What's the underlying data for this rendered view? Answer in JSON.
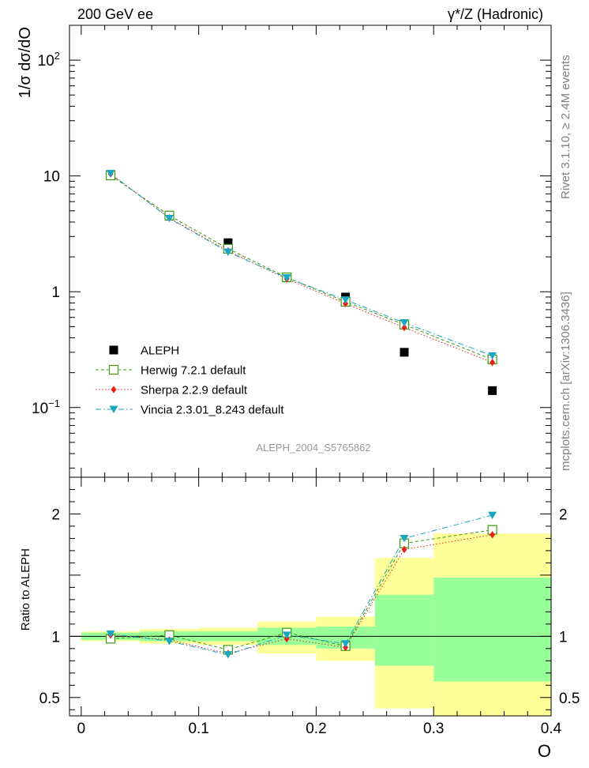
{
  "header": {
    "left": "200 GeV ee",
    "right": "γ*/Z (Hadronic)"
  },
  "side_labels": {
    "rivet": "Rivet 3.1.10, ≥ 2.4M events",
    "mcplots": "mcplots.cern.ch [arXiv:1306.3436]"
  },
  "chart_data": [
    {
      "type": "scatter",
      "panel": "main",
      "ylabel": "1/σ  dσ/dO",
      "yscale": "log",
      "xlim": [
        -0.01,
        0.4
      ],
      "ylim": [
        0.025,
        200
      ],
      "yticks": [
        {
          "value": 0.1,
          "label": "10",
          "sup": "−1"
        },
        {
          "value": 1,
          "label": "1",
          "sup": ""
        },
        {
          "value": 10,
          "label": "10",
          "sup": ""
        },
        {
          "value": 100,
          "label": "10",
          "sup": "2"
        }
      ],
      "watermark": "ALEPH_2004_S5765862",
      "x": [
        0.025,
        0.075,
        0.125,
        0.175,
        0.225,
        0.275,
        0.35
      ],
      "series": [
        {
          "name": "ALEPH",
          "color": "#000000",
          "marker": "square-filled",
          "line": "none",
          "values": [
            10.3,
            4.5,
            2.65,
            1.32,
            0.9,
            0.3,
            0.14
          ]
        },
        {
          "name": "Herwig 7.2.1 default",
          "color": "#3a9a10",
          "marker": "square-open",
          "line": "dashed",
          "values": [
            10.1,
            4.55,
            2.35,
            1.33,
            0.82,
            0.52,
            0.26
          ]
        },
        {
          "name": "Sherpa 2.2.9 default",
          "color": "#e8221a",
          "marker": "diamond-filled",
          "line": "dotted",
          "values": [
            10.4,
            4.35,
            2.25,
            1.29,
            0.79,
            0.49,
            0.245
          ]
        },
        {
          "name": "Vincia 2.3.01_8.243 default",
          "color": "#19a7c2",
          "marker": "triangle-down-filled",
          "line": "dashdot",
          "values": [
            10.5,
            4.3,
            2.2,
            1.32,
            0.85,
            0.54,
            0.28
          ]
        }
      ]
    },
    {
      "type": "scatter",
      "panel": "ratio",
      "ylabel": "Ratio to ALEPH",
      "xlabel": "O",
      "xlim": [
        -0.01,
        0.4
      ],
      "ylim": [
        0.35,
        2.3
      ],
      "xticks": [
        {
          "value": 0,
          "label": "0"
        },
        {
          "value": 0.1,
          "label": "0.1"
        },
        {
          "value": 0.2,
          "label": "0.2"
        },
        {
          "value": 0.3,
          "label": "0.3"
        },
        {
          "value": 0.4,
          "label": "0.4"
        }
      ],
      "yticks": [
        {
          "value": 0.5,
          "label": "0.5"
        },
        {
          "value": 1,
          "label": "1"
        },
        {
          "value": 2,
          "label": "2"
        }
      ],
      "bands": {
        "bin_edges": [
          0,
          0.05,
          0.1,
          0.15,
          0.2,
          0.25,
          0.3,
          0.4
        ],
        "yellow": [
          [
            0.96,
            1.04
          ],
          [
            0.94,
            1.06
          ],
          [
            0.93,
            1.07
          ],
          [
            0.86,
            1.12
          ],
          [
            0.8,
            1.16
          ],
          [
            0.41,
            1.64
          ],
          [
            0.32,
            1.84
          ]
        ],
        "green": [
          [
            0.97,
            1.03
          ],
          [
            0.96,
            1.04
          ],
          [
            0.96,
            1.04
          ],
          [
            0.93,
            1.07
          ],
          [
            0.9,
            1.08
          ],
          [
            0.76,
            1.34
          ],
          [
            0.63,
            1.48
          ]
        ]
      },
      "x": [
        0.025,
        0.075,
        0.125,
        0.175,
        0.225,
        0.275,
        0.35
      ],
      "series": [
        {
          "name": "Herwig 7.2.1 default",
          "color": "#3a9a10",
          "marker": "square-open",
          "line": "dashed",
          "values": [
            0.98,
            1.01,
            0.89,
            1.03,
            0.92,
            1.76,
            1.87
          ]
        },
        {
          "name": "Sherpa 2.2.9 default",
          "color": "#e8221a",
          "marker": "diamond-filled",
          "line": "dotted",
          "values": [
            1.01,
            0.97,
            0.86,
            0.98,
            0.91,
            1.71,
            1.83
          ]
        },
        {
          "name": "Vincia 2.3.01_8.243 default",
          "color": "#19a7c2",
          "marker": "triangle-down-filled",
          "line": "dashdot",
          "values": [
            1.02,
            0.96,
            0.85,
            1.01,
            0.94,
            1.8,
            1.99
          ]
        }
      ]
    }
  ]
}
